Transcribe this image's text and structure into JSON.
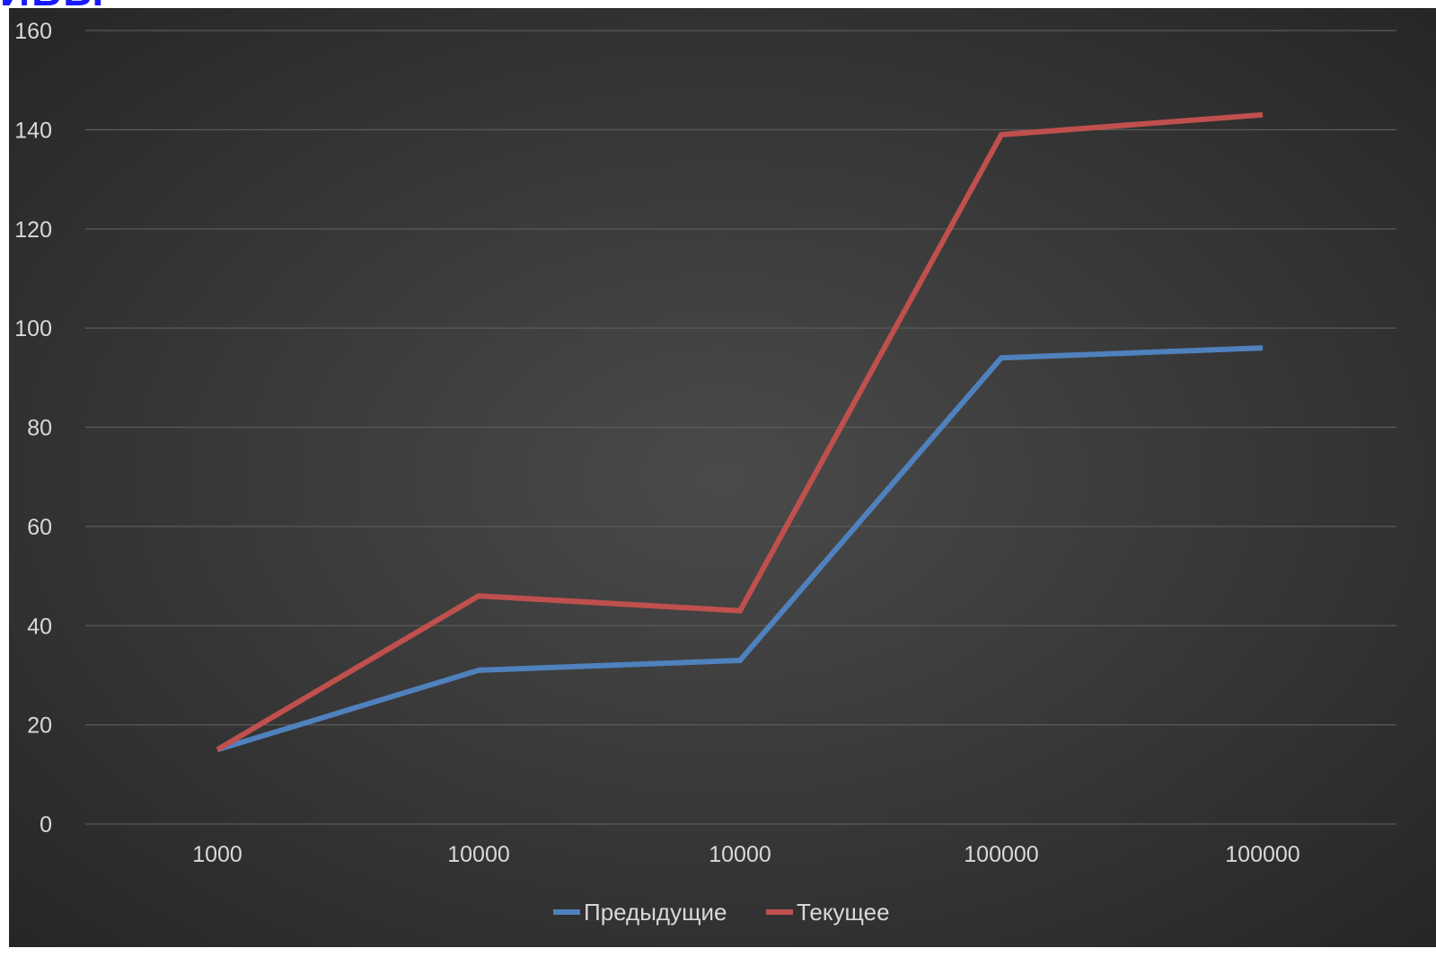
{
  "header_fragment": "ИВЫ",
  "chart_data": {
    "type": "line",
    "categories": [
      "1000",
      "10000",
      "10000",
      "100000",
      "100000"
    ],
    "series": [
      {
        "name": "Предыдущие",
        "color": "#4f81bd",
        "values": [
          15,
          31,
          33,
          94,
          96
        ]
      },
      {
        "name": "Текущее",
        "color": "#c0504d",
        "values": [
          15,
          46,
          43,
          139,
          143
        ]
      }
    ],
    "ylim": [
      0,
      160
    ],
    "yticks": [
      "0",
      "20",
      "40",
      "60",
      "80",
      "100",
      "120",
      "140",
      "160"
    ],
    "grid": true,
    "legend_position": "bottom"
  }
}
